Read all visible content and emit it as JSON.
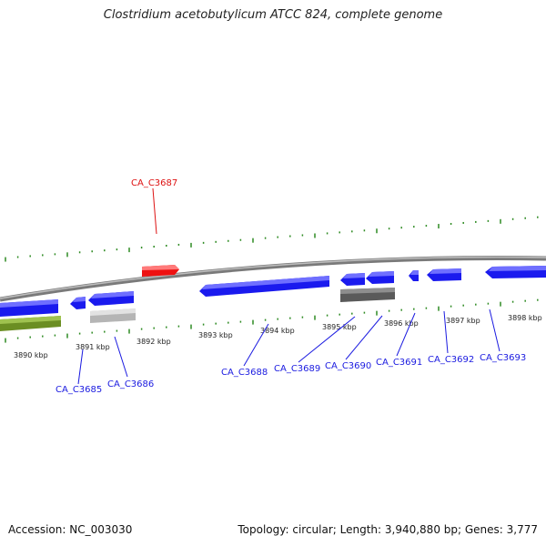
{
  "title": "Clostridium acetobutylicum ATCC 824, complete genome",
  "footer": {
    "accession": "Accession: NC_003030",
    "summary": "Topology: circular; Length: 3,940,880 bp; Genes: 3,777"
  },
  "colors": {
    "backbone": "#8a8a8a",
    "gene_forward_highlight": "#ee1111",
    "gene_reverse": "#1a1aee",
    "gene_other_green": "#6b8e23",
    "gene_light_grey": "#c4c4c4",
    "gene_dark_grey": "#6a6a6a",
    "tick_green": "#2e8b22",
    "label_blue": "#1a1ae0",
    "label_red": "#dd1111"
  },
  "ruler_labels": [
    "3890 kbp",
    "3891 kbp",
    "3892 kbp",
    "3893 kbp",
    "3894 kbp",
    "3895 kbp",
    "3896 kbp",
    "3897 kbp",
    "3898 kbp"
  ],
  "gene_labels": [
    {
      "text": "CA_C3687",
      "color": "red"
    },
    {
      "text": "CA_C3685",
      "color": "blue"
    },
    {
      "text": "CA_C3686",
      "color": "blue"
    },
    {
      "text": "CA_C3688",
      "color": "blue"
    },
    {
      "text": "CA_C3689",
      "color": "blue"
    },
    {
      "text": "CA_C3690",
      "color": "blue"
    },
    {
      "text": "CA_C3691",
      "color": "blue"
    },
    {
      "text": "CA_C3692",
      "color": "blue"
    },
    {
      "text": "CA_C3693",
      "color": "blue"
    }
  ]
}
